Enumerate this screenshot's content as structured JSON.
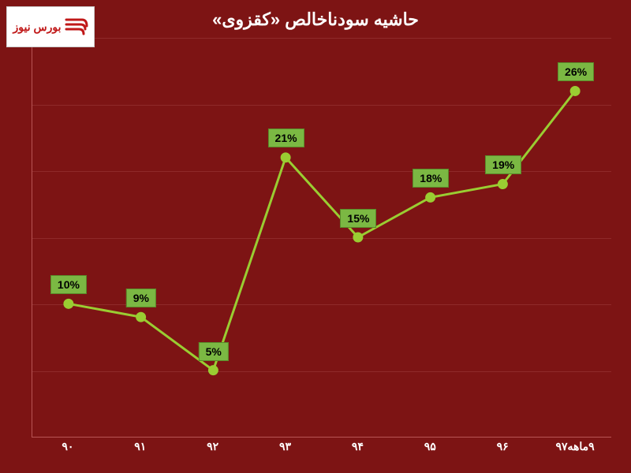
{
  "title": "حاشیه سودناخالص «کقزوی»",
  "logo": {
    "text": "بورس نیوز",
    "icon_color": "#c01818"
  },
  "chart": {
    "type": "line",
    "background_color": "#7d1414",
    "grid_color": "#8f2a2a",
    "axis_color": "#b85555",
    "line_color": "#9acd32",
    "line_width": 3,
    "marker_color": "#9acd32",
    "marker_size": 6,
    "label_bg_color": "#7bb843",
    "label_border_color": "#5a8a2a",
    "label_text_color": "#000000",
    "label_fontsize": 14,
    "xlabel_color": "#ffffff",
    "xlabel_fontsize": 14,
    "title_color": "#ffffff",
    "title_fontsize": 22,
    "ylim": [
      0,
      30
    ],
    "gridlines_y": [
      5,
      10,
      15,
      20,
      25,
      30
    ],
    "categories": [
      "۹۰",
      "۹۱",
      "۹۲",
      "۹۳",
      "۹۴",
      "۹۵",
      "۹۶",
      "۹ماهه۹۷"
    ],
    "values": [
      10,
      9,
      5,
      21,
      15,
      18,
      19,
      26
    ],
    "value_labels": [
      "10%",
      "9%",
      "5%",
      "21%",
      "15%",
      "18%",
      "19%",
      "26%"
    ],
    "label_offsets_y": [
      -25,
      -25,
      -25,
      -25,
      -25,
      -25,
      -25,
      -25
    ]
  }
}
